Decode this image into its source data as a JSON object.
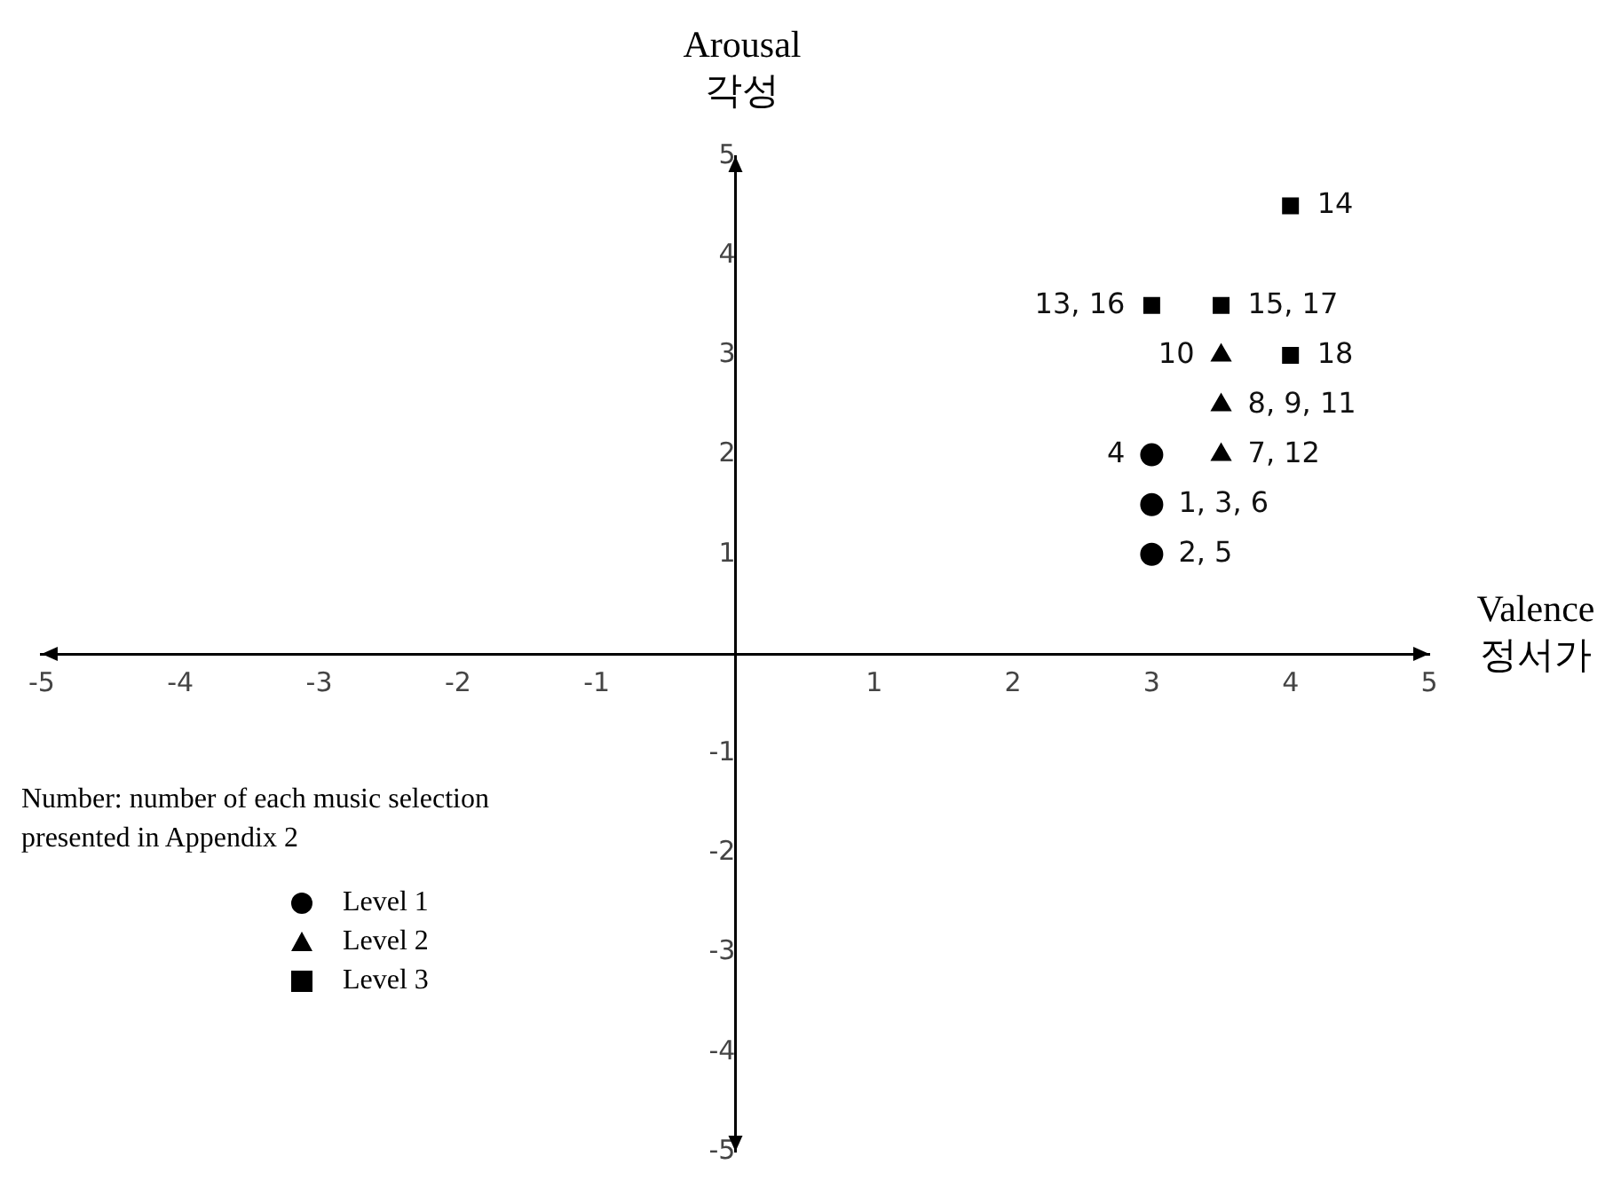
{
  "chart_data": {
    "type": "scatter",
    "xlabel": "Valence\n정서가",
    "ylabel": "Arousal\n각성",
    "xlim": [
      -5,
      5
    ],
    "ylim": [
      -5,
      5
    ],
    "xticks": [
      -5,
      -4,
      -3,
      -2,
      -1,
      1,
      2,
      3,
      4,
      5
    ],
    "yticks": [
      -5,
      -4,
      -3,
      -2,
      -1,
      1,
      2,
      3,
      4,
      5
    ],
    "grid": false,
    "legend": "bottom left",
    "series": [
      {
        "name": "Level 1",
        "color": "#000000",
        "marker": "circle",
        "x": [
          3,
          3,
          3
        ],
        "values": [
          2,
          1.5,
          1
        ]
      },
      {
        "name": "Level 2",
        "color": "#000000",
        "marker": "triangle",
        "x": [
          3.5,
          3.5,
          3.5
        ],
        "values": [
          3,
          2.5,
          2
        ]
      },
      {
        "name": "Level 3",
        "color": "#000000",
        "marker": "square",
        "x": [
          4,
          3,
          3.5,
          4
        ],
        "values": [
          4.5,
          3.5,
          3.5,
          3
        ]
      }
    ],
    "annotations": [
      "Number: number of each music selection presented in Appendix 2",
      {
        "text": "4",
        "x": 3,
        "y": 2
      },
      {
        "text": "1, 3, 6",
        "x": 3,
        "y": 1.5
      },
      {
        "text": "2, 5",
        "x": 3,
        "y": 1
      },
      {
        "text": "10",
        "x": 3.5,
        "y": 3
      },
      {
        "text": "8, 9, 11",
        "x": 3.5,
        "y": 2.5
      },
      {
        "text": "7, 12",
        "x": 3.5,
        "y": 2
      },
      {
        "text": "14",
        "x": 4,
        "y": 4.5
      },
      {
        "text": "13, 16",
        "x": 3,
        "y": 3.5
      },
      {
        "text": "15, 17",
        "x": 3.5,
        "y": 3.5
      },
      {
        "text": "18",
        "x": 4,
        "y": 3
      }
    ]
  }
}
